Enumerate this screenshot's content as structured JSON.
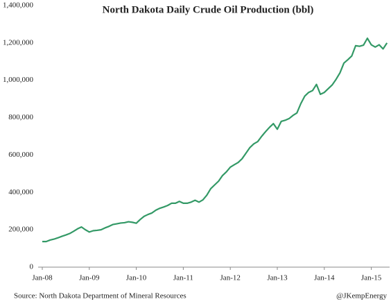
{
  "chart_data": {
    "type": "line",
    "title": "North Dakota Daily Crude Oil Production (bbl)",
    "source": "Source:  North Dakota Department of Mineral Resources",
    "credit": "@JKempEnergy",
    "categories": [
      "Jan-08",
      null,
      null,
      null,
      null,
      null,
      null,
      null,
      null,
      null,
      null,
      null,
      "Jan-09",
      null,
      null,
      null,
      null,
      null,
      null,
      null,
      null,
      null,
      null,
      null,
      "Jan-10",
      null,
      null,
      null,
      null,
      null,
      null,
      null,
      null,
      null,
      null,
      null,
      "Jan-11",
      null,
      null,
      null,
      null,
      null,
      null,
      null,
      null,
      null,
      null,
      null,
      "Jan-12",
      null,
      null,
      null,
      null,
      null,
      null,
      null,
      null,
      null,
      null,
      null,
      "Jan-13",
      null,
      null,
      null,
      null,
      null,
      null,
      null,
      null,
      null,
      null,
      null,
      "Jan-14",
      null,
      null,
      null,
      null,
      null,
      null,
      null,
      null,
      null,
      null,
      null,
      "Jan-15",
      null,
      null,
      null,
      null
    ],
    "values": [
      137000,
      137000,
      145000,
      150000,
      157000,
      165000,
      172000,
      180000,
      192000,
      205000,
      215000,
      200000,
      188000,
      195000,
      197000,
      200000,
      210000,
      218000,
      228000,
      232000,
      236000,
      238000,
      243000,
      240000,
      235000,
      255000,
      272000,
      282000,
      290000,
      305000,
      315000,
      322000,
      330000,
      342000,
      342000,
      352000,
      342000,
      342000,
      348000,
      358000,
      348000,
      360000,
      385000,
      420000,
      440000,
      460000,
      490000,
      510000,
      535000,
      548000,
      560000,
      580000,
      610000,
      640000,
      660000,
      672000,
      700000,
      725000,
      748000,
      768000,
      738000,
      780000,
      786000,
      795000,
      812000,
      825000,
      875000,
      915000,
      935000,
      945000,
      978000,
      925000,
      935000,
      955000,
      975000,
      1005000,
      1040000,
      1092000,
      1110000,
      1130000,
      1185000,
      1182000,
      1188000,
      1225000,
      1190000,
      1178000,
      1190000,
      1168000,
      1200000
    ],
    "color": "#339966",
    "ylim": [
      0,
      1400000
    ],
    "yticks": [
      0,
      {
        "value": 200000,
        "label": "200,000"
      },
      {
        "value": 400000,
        "label": "400,000"
      },
      {
        "value": 600000,
        "label": "600,000"
      },
      {
        "value": 800000,
        "label": "800,000"
      },
      {
        "value": 1000000,
        "label": "1,000,000"
      },
      {
        "value": 1200000,
        "label": "1,200,000"
      },
      {
        "value": 1400000,
        "label": "1,400,000"
      }
    ],
    "grid": false
  }
}
